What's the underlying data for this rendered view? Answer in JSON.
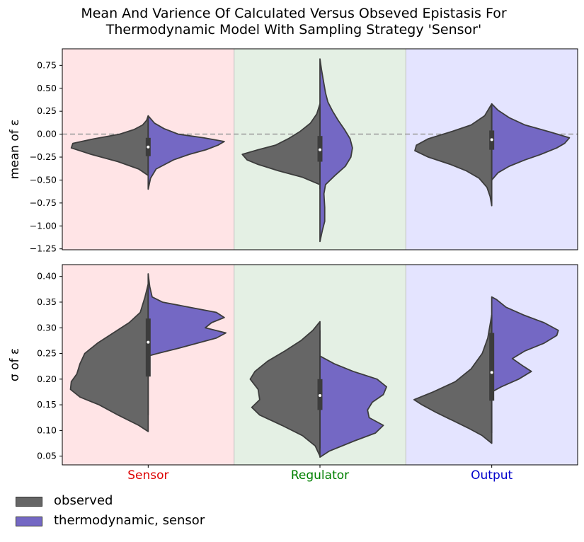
{
  "chart_data": {
    "type": "violin",
    "title": "Mean And Varience Of Calculated Versus Obseved Epistasis For\nThermodynamic Model With Sampling Strategy 'Sensor'",
    "categories": [
      "Sensor",
      "Regulator",
      "Output"
    ],
    "category_colors": [
      "#dd0000",
      "#008000",
      "#0000cc"
    ],
    "background_colors": [
      "#ffe4e6",
      "#e4f0e4",
      "#e4e4ff"
    ],
    "legend": {
      "placement": "bottom-left",
      "entries": [
        {
          "label": "observed",
          "color": "#666666"
        },
        {
          "label": "thermodynamic, sensor",
          "color": "#7468c4"
        }
      ]
    },
    "panels": [
      {
        "ylabel": "mean of ε",
        "ylim": [
          -1.26,
          0.93
        ],
        "yticks": [
          -1.25,
          -1.0,
          -0.75,
          -0.5,
          -0.25,
          0.0,
          0.25,
          0.5,
          0.75
        ],
        "ytick_labels": [
          "−1.25",
          "−1.00",
          "−0.75",
          "−0.50",
          "−0.25",
          "0.00",
          "0.25",
          "0.50",
          "0.75"
        ],
        "reference_line": 0,
        "violins": [
          {
            "category": "Sensor",
            "observed": {
              "min": -0.45,
              "max": 0.2,
              "profile": [
                [
                  -0.45,
                  0.0
                ],
                [
                  -0.38,
                  0.12
                ],
                [
                  -0.3,
                  0.38
                ],
                [
                  -0.22,
                  0.72
                ],
                [
                  -0.15,
                  0.97
                ],
                [
                  -0.1,
                  0.95
                ],
                [
                  -0.05,
                  0.68
                ],
                [
                  0.0,
                  0.36
                ],
                [
                  0.05,
                  0.18
                ],
                [
                  0.1,
                  0.07
                ],
                [
                  0.15,
                  0.02
                ],
                [
                  0.2,
                  0.0
                ]
              ]
            },
            "model": {
              "min": -0.6,
              "max": 0.2,
              "profile": [
                [
                  -0.6,
                  0.0
                ],
                [
                  -0.48,
                  0.03
                ],
                [
                  -0.38,
                  0.1
                ],
                [
                  -0.28,
                  0.32
                ],
                [
                  -0.22,
                  0.52
                ],
                [
                  -0.17,
                  0.73
                ],
                [
                  -0.12,
                  0.88
                ],
                [
                  -0.08,
                  0.96
                ],
                [
                  -0.04,
                  0.7
                ],
                [
                  0.0,
                  0.38
                ],
                [
                  0.06,
                  0.2
                ],
                [
                  0.12,
                  0.08
                ],
                [
                  0.2,
                  0.0
                ]
              ]
            },
            "box": {
              "q1": -0.24,
              "median": -0.14,
              "q3": -0.04,
              "whisker_low": -0.42,
              "whisker_high": 0.15
            }
          },
          {
            "category": "Regulator",
            "observed": {
              "min": -0.55,
              "max": 0.33,
              "profile": [
                [
                  -0.55,
                  0.0
                ],
                [
                  -0.47,
                  0.22
                ],
                [
                  -0.4,
                  0.52
                ],
                [
                  -0.33,
                  0.78
                ],
                [
                  -0.28,
                  0.92
                ],
                [
                  -0.22,
                  0.98
                ],
                [
                  -0.17,
                  0.78
                ],
                [
                  -0.12,
                  0.56
                ],
                [
                  -0.05,
                  0.4
                ],
                [
                  0.03,
                  0.25
                ],
                [
                  0.12,
                  0.12
                ],
                [
                  0.22,
                  0.04
                ],
                [
                  0.33,
                  0.0
                ]
              ]
            },
            "model": {
              "min": -1.17,
              "max": 0.82,
              "profile": [
                [
                  -1.17,
                  0.0
                ],
                [
                  -1.05,
                  0.03
                ],
                [
                  -0.95,
                  0.06
                ],
                [
                  -0.8,
                  0.06
                ],
                [
                  -0.65,
                  0.05
                ],
                [
                  -0.55,
                  0.07
                ],
                [
                  -0.45,
                  0.19
                ],
                [
                  -0.35,
                  0.32
                ],
                [
                  -0.25,
                  0.39
                ],
                [
                  -0.15,
                  0.41
                ],
                [
                  -0.05,
                  0.38
                ],
                [
                  0.05,
                  0.31
                ],
                [
                  0.15,
                  0.23
                ],
                [
                  0.25,
                  0.16
                ],
                [
                  0.35,
                  0.1
                ],
                [
                  0.45,
                  0.07
                ],
                [
                  0.6,
                  0.04
                ],
                [
                  0.7,
                  0.02
                ],
                [
                  0.82,
                  0.0
                ]
              ]
            },
            "box": {
              "q1": -0.3,
              "median": -0.17,
              "q3": -0.02,
              "whisker_low": -0.6,
              "whisker_high": 0.33
            }
          },
          {
            "category": "Output",
            "observed": {
              "min": -0.78,
              "max": 0.33,
              "profile": [
                [
                  -0.78,
                  0.0
                ],
                [
                  -0.68,
                  0.02
                ],
                [
                  -0.58,
                  0.06
                ],
                [
                  -0.48,
                  0.16
                ],
                [
                  -0.4,
                  0.32
                ],
                [
                  -0.33,
                  0.52
                ],
                [
                  -0.25,
                  0.8
                ],
                [
                  -0.18,
                  0.97
                ],
                [
                  -0.12,
                  0.95
                ],
                [
                  -0.05,
                  0.8
                ],
                [
                  0.03,
                  0.5
                ],
                [
                  0.1,
                  0.26
                ],
                [
                  0.2,
                  0.09
                ],
                [
                  0.33,
                  0.0
                ]
              ]
            },
            "model": {
              "min": -0.5,
              "max": 0.33,
              "profile": [
                [
                  -0.5,
                  0.0
                ],
                [
                  -0.42,
                  0.08
                ],
                [
                  -0.35,
                  0.22
                ],
                [
                  -0.28,
                  0.42
                ],
                [
                  -0.22,
                  0.62
                ],
                [
                  -0.15,
                  0.82
                ],
                [
                  -0.1,
                  0.92
                ],
                [
                  -0.04,
                  0.98
                ],
                [
                  0.02,
                  0.75
                ],
                [
                  0.1,
                  0.42
                ],
                [
                  0.18,
                  0.22
                ],
                [
                  0.26,
                  0.08
                ],
                [
                  0.33,
                  0.0
                ]
              ]
            },
            "box": {
              "q1": -0.17,
              "median": -0.06,
              "q3": 0.04,
              "whisker_low": -0.45,
              "whisker_high": 0.3
            }
          }
        ]
      },
      {
        "ylabel": "σ of ε",
        "ylim": [
          0.033,
          0.423
        ],
        "yticks": [
          0.05,
          0.1,
          0.15,
          0.2,
          0.25,
          0.3,
          0.35,
          0.4
        ],
        "ytick_labels": [
          "0.05",
          "0.10",
          "0.15",
          "0.20",
          "0.25",
          "0.30",
          "0.35",
          "0.40"
        ],
        "violins": [
          {
            "category": "Sensor",
            "observed": {
              "min": 0.098,
              "max": 0.385,
              "profile": [
                [
                  0.098,
                  0.0
                ],
                [
                  0.11,
                  0.12
                ],
                [
                  0.13,
                  0.38
                ],
                [
                  0.15,
                  0.62
                ],
                [
                  0.165,
                  0.86
                ],
                [
                  0.18,
                  0.98
                ],
                [
                  0.195,
                  0.97
                ],
                [
                  0.21,
                  0.9
                ],
                [
                  0.23,
                  0.86
                ],
                [
                  0.25,
                  0.8
                ],
                [
                  0.27,
                  0.64
                ],
                [
                  0.29,
                  0.44
                ],
                [
                  0.31,
                  0.24
                ],
                [
                  0.33,
                  0.1
                ],
                [
                  0.36,
                  0.04
                ],
                [
                  0.385,
                  0.0
                ]
              ]
            },
            "model": {
              "min": 0.245,
              "max": 0.405,
              "profile": [
                [
                  0.245,
                  0.0
                ],
                [
                  0.25,
                  0.12
                ],
                [
                  0.26,
                  0.38
                ],
                [
                  0.27,
                  0.62
                ],
                [
                  0.28,
                  0.86
                ],
                [
                  0.29,
                  0.98
                ],
                [
                  0.3,
                  0.72
                ],
                [
                  0.31,
                  0.8
                ],
                [
                  0.32,
                  0.96
                ],
                [
                  0.33,
                  0.86
                ],
                [
                  0.34,
                  0.52
                ],
                [
                  0.35,
                  0.18
                ],
                [
                  0.36,
                  0.05
                ],
                [
                  0.38,
                  0.02
                ],
                [
                  0.405,
                  0.0
                ]
              ]
            },
            "box": {
              "q1": 0.205,
              "median": 0.272,
              "q3": 0.318,
              "whisker_low": 0.13,
              "whisker_high": 0.385
            }
          },
          {
            "category": "Regulator",
            "observed": {
              "min": 0.05,
              "max": 0.312,
              "profile": [
                [
                  0.05,
                  0.0
                ],
                [
                  0.07,
                  0.06
                ],
                [
                  0.09,
                  0.22
                ],
                [
                  0.11,
                  0.48
                ],
                [
                  0.13,
                  0.76
                ],
                [
                  0.145,
                  0.86
                ],
                [
                  0.16,
                  0.76
                ],
                [
                  0.18,
                  0.78
                ],
                [
                  0.2,
                  0.88
                ],
                [
                  0.215,
                  0.82
                ],
                [
                  0.235,
                  0.66
                ],
                [
                  0.255,
                  0.44
                ],
                [
                  0.275,
                  0.24
                ],
                [
                  0.295,
                  0.09
                ],
                [
                  0.312,
                  0.0
                ]
              ]
            },
            "model": {
              "min": 0.048,
              "max": 0.245,
              "profile": [
                [
                  0.048,
                  0.0
                ],
                [
                  0.06,
                  0.12
                ],
                [
                  0.08,
                  0.44
                ],
                [
                  0.095,
                  0.7
                ],
                [
                  0.11,
                  0.8
                ],
                [
                  0.125,
                  0.62
                ],
                [
                  0.14,
                  0.6
                ],
                [
                  0.155,
                  0.66
                ],
                [
                  0.17,
                  0.8
                ],
                [
                  0.185,
                  0.84
                ],
                [
                  0.2,
                  0.72
                ],
                [
                  0.215,
                  0.42
                ],
                [
                  0.23,
                  0.18
                ],
                [
                  0.245,
                  0.0
                ]
              ]
            },
            "box": {
              "q1": 0.14,
              "median": 0.168,
              "q3": 0.2,
              "whisker_low": 0.065,
              "whisker_high": 0.295
            }
          },
          {
            "category": "Output",
            "observed": {
              "min": 0.075,
              "max": 0.325,
              "profile": [
                [
                  0.075,
                  0.0
                ],
                [
                  0.09,
                  0.12
                ],
                [
                  0.105,
                  0.3
                ],
                [
                  0.12,
                  0.5
                ],
                [
                  0.135,
                  0.7
                ],
                [
                  0.15,
                  0.88
                ],
                [
                  0.16,
                  0.98
                ],
                [
                  0.175,
                  0.74
                ],
                [
                  0.195,
                  0.46
                ],
                [
                  0.22,
                  0.26
                ],
                [
                  0.25,
                  0.12
                ],
                [
                  0.28,
                  0.05
                ],
                [
                  0.325,
                  0.0
                ]
              ]
            },
            "model": {
              "min": 0.175,
              "max": 0.36,
              "profile": [
                [
                  0.175,
                  0.0
                ],
                [
                  0.185,
                  0.12
                ],
                [
                  0.2,
                  0.34
                ],
                [
                  0.215,
                  0.5
                ],
                [
                  0.225,
                  0.4
                ],
                [
                  0.24,
                  0.26
                ],
                [
                  0.255,
                  0.42
                ],
                [
                  0.27,
                  0.66
                ],
                [
                  0.285,
                  0.82
                ],
                [
                  0.295,
                  0.84
                ],
                [
                  0.31,
                  0.66
                ],
                [
                  0.325,
                  0.4
                ],
                [
                  0.34,
                  0.18
                ],
                [
                  0.355,
                  0.06
                ],
                [
                  0.36,
                  0.0
                ]
              ]
            },
            "box": {
              "q1": 0.158,
              "median": 0.213,
              "q3": 0.29,
              "whisker_low": 0.095,
              "whisker_high": 0.325
            }
          }
        ]
      }
    ]
  }
}
